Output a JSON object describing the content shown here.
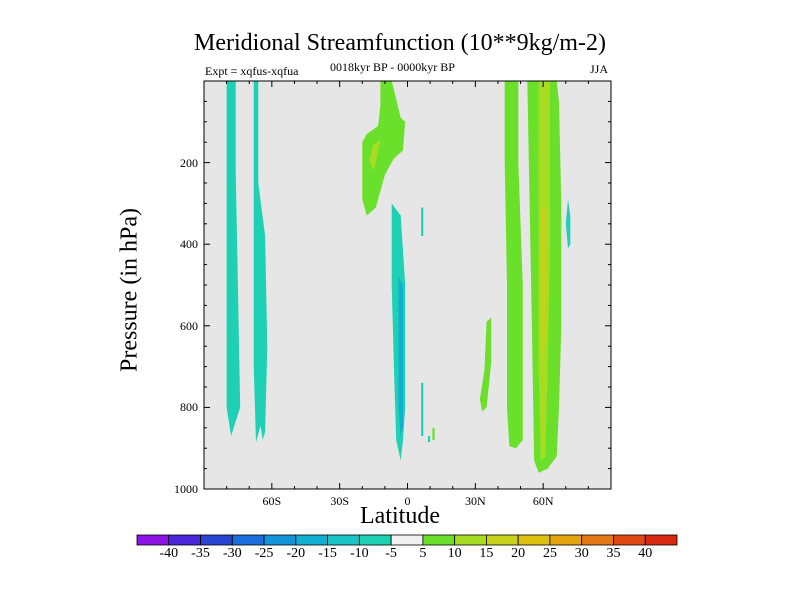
{
  "chart_data": {
    "type": "contour",
    "title": "Meridional Streamfunction (10**9kg/m-2)",
    "subtitle": "0018kyr BP - 0000kyr BP",
    "experiment": "Expt = xqfus-xqfua",
    "season": "JJA",
    "xlabel": "Latitude",
    "ylabel": "Pressure (in hPa)",
    "xlim": [
      -90,
      90
    ],
    "ylim": [
      1000,
      0
    ],
    "xticks": [
      {
        "value": -60,
        "label": "60S"
      },
      {
        "value": -30,
        "label": "30S"
      },
      {
        "value": 0,
        "label": "0"
      },
      {
        "value": 30,
        "label": "30N"
      },
      {
        "value": 60,
        "label": "60N"
      }
    ],
    "yticks": [
      {
        "value": 200,
        "label": "200"
      },
      {
        "value": 400,
        "label": "400"
      },
      {
        "value": 600,
        "label": "600"
      },
      {
        "value": 800,
        "label": "800"
      },
      {
        "value": 1000,
        "label": "1000"
      }
    ],
    "background_color": "#e6e6e6",
    "regions": [
      {
        "name": "cell-80S",
        "level": -10,
        "color": "#1ed1b4",
        "points": [
          [
            -80,
            0
          ],
          [
            -76,
            0
          ],
          [
            -76,
            220
          ],
          [
            -75,
            500
          ],
          [
            -74,
            800
          ],
          [
            -78,
            870
          ],
          [
            -80,
            800
          ],
          [
            -80,
            500
          ]
        ]
      },
      {
        "name": "cell-65S",
        "level": -10,
        "color": "#1ed1b4",
        "points": [
          [
            -68,
            0
          ],
          [
            -66,
            0
          ],
          [
            -66,
            250
          ],
          [
            -63,
            380
          ],
          [
            -62,
            650
          ],
          [
            -63,
            860
          ],
          [
            -64,
            880
          ],
          [
            -65,
            845
          ],
          [
            -67,
            885
          ],
          [
            -68,
            700
          ],
          [
            -68,
            300
          ]
        ]
      },
      {
        "name": "cell-5S",
        "level": -10,
        "color": "#1ed1b4",
        "points": [
          [
            -7,
            300
          ],
          [
            -3,
            330
          ],
          [
            -1,
            500
          ],
          [
            -1,
            800
          ],
          [
            -2,
            880
          ],
          [
            -3,
            930
          ],
          [
            -5,
            880
          ],
          [
            -6,
            700
          ],
          [
            -7,
            500
          ]
        ]
      },
      {
        "name": "cell-1S",
        "level": -15,
        "color": "#12b0d0",
        "points": [
          [
            -4,
            480
          ],
          [
            -2,
            500
          ],
          [
            -2,
            850
          ],
          [
            -3,
            870
          ],
          [
            -4,
            800
          ]
        ]
      },
      {
        "name": "cell-7N",
        "level": -10,
        "color": "#1ed1b4",
        "points": [
          [
            6,
            310
          ],
          [
            7,
            310
          ],
          [
            7,
            380
          ],
          [
            6,
            380
          ]
        ]
      },
      {
        "name": "cell-6N-low",
        "level": -10,
        "color": "#1ed1b4",
        "points": [
          [
            6,
            740
          ],
          [
            7,
            740
          ],
          [
            7,
            870
          ],
          [
            6,
            870
          ]
        ]
      },
      {
        "name": "cell-9N",
        "level": -10,
        "color": "#1ed1b4",
        "points": [
          [
            9,
            870
          ],
          [
            10,
            870
          ],
          [
            10,
            885
          ],
          [
            9,
            885
          ]
        ]
      },
      {
        "name": "cell-10N-line",
        "level": 5,
        "color": "#6be02a",
        "points": [
          [
            11,
            850
          ],
          [
            12,
            850
          ],
          [
            12,
            880
          ],
          [
            11,
            880
          ]
        ]
      },
      {
        "name": "cell-15S-upper",
        "level": 5,
        "color": "#6be02a",
        "points": [
          [
            -12,
            0
          ],
          [
            -7,
            0
          ],
          [
            -3,
            90
          ],
          [
            -1,
            100
          ],
          [
            -2,
            170
          ],
          [
            -6,
            190
          ],
          [
            -10,
            230
          ],
          [
            -14,
            310
          ],
          [
            -18,
            330
          ],
          [
            -20,
            290
          ],
          [
            -20,
            150
          ],
          [
            -18,
            130
          ],
          [
            -13,
            110
          ],
          [
            -12,
            60
          ]
        ]
      },
      {
        "name": "cell-15S-core",
        "level": 10,
        "color": "#a8dc22",
        "points": [
          [
            -15,
            155
          ],
          [
            -12,
            145
          ],
          [
            -14,
            200
          ],
          [
            -15,
            220
          ],
          [
            -17,
            195
          ]
        ]
      },
      {
        "name": "cell-40N",
        "level": 5,
        "color": "#6be02a",
        "points": [
          [
            35,
            590
          ],
          [
            37,
            580
          ],
          [
            37,
            690
          ],
          [
            35,
            800
          ],
          [
            33,
            810
          ],
          [
            32,
            780
          ],
          [
            34,
            710
          ]
        ]
      },
      {
        "name": "cell-47N",
        "level": 5,
        "color": "#6be02a",
        "points": [
          [
            43,
            0
          ],
          [
            49,
            0
          ],
          [
            49,
            200
          ],
          [
            51,
            500
          ],
          [
            51,
            880
          ],
          [
            48,
            900
          ],
          [
            45,
            895
          ],
          [
            44,
            800
          ],
          [
            44,
            500
          ],
          [
            43,
            200
          ]
        ]
      },
      {
        "name": "cell-60N",
        "level": 5,
        "color": "#6be02a",
        "points": [
          [
            53,
            0
          ],
          [
            66,
            0
          ],
          [
            67,
            50
          ],
          [
            68,
            300
          ],
          [
            68,
            600
          ],
          [
            67,
            800
          ],
          [
            66,
            920
          ],
          [
            62,
            950
          ],
          [
            58,
            960
          ],
          [
            56,
            930
          ],
          [
            55,
            600
          ],
          [
            54,
            300
          ]
        ]
      },
      {
        "name": "cell-60N-core",
        "level": 10,
        "color": "#a8dc22",
        "points": [
          [
            58,
            0
          ],
          [
            63,
            0
          ],
          [
            63,
            400
          ],
          [
            62,
            700
          ],
          [
            61,
            920
          ],
          [
            59,
            930
          ],
          [
            58,
            700
          ],
          [
            58,
            300
          ]
        ]
      },
      {
        "name": "cell-60N-max",
        "level": 15,
        "color": "#c9d21a",
        "points": [
          [
            59,
            300
          ],
          [
            61,
            320
          ],
          [
            61,
            600
          ],
          [
            60,
            700
          ],
          [
            59,
            600
          ]
        ]
      },
      {
        "name": "cell-72N",
        "level": -10,
        "color": "#1ed1b4",
        "points": [
          [
            71,
            290
          ],
          [
            72,
            330
          ],
          [
            72,
            400
          ],
          [
            71,
            410
          ],
          [
            70,
            350
          ]
        ]
      }
    ],
    "colorbar": {
      "levels": [
        -40,
        -35,
        -30,
        -25,
        -20,
        -15,
        -10,
        -5,
        5,
        10,
        15,
        20,
        25,
        30,
        35,
        40
      ],
      "colors": [
        "#8c14e6",
        "#4a26d8",
        "#2a44d2",
        "#1b6edc",
        "#1494d8",
        "#12b0d0",
        "#1bc4c4",
        "#1ed1b4",
        "#f0f0f0",
        "#6be02a",
        "#a8dc22",
        "#c9d21a",
        "#dcc010",
        "#e3a410",
        "#e47a14",
        "#df4a14",
        "#d82a10"
      ]
    }
  }
}
